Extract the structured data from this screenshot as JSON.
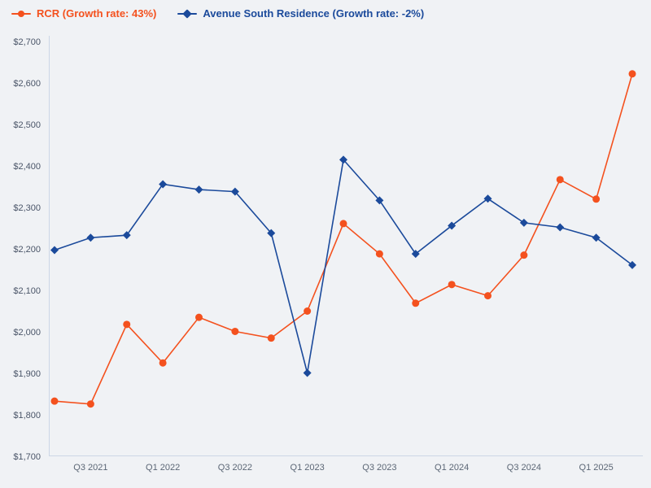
{
  "colors": {
    "background": "#f0f2f5",
    "axis_line": "#ccd6e6",
    "y_tick_label": "#4a5568",
    "x_tick_label": "#5b6675",
    "rcr_accent": "#f4511e",
    "avenue_south_accent": "#1b4a9b"
  },
  "chart_data": {
    "type": "line",
    "title": "",
    "xlabel": "",
    "ylabel": "",
    "grid": false,
    "legend_position": "top-left",
    "categories": [
      "Q2 2021",
      "Q3 2021",
      "Q4 2021",
      "Q1 2022",
      "Q2 2022",
      "Q3 2022",
      "Q4 2022",
      "Q1 2023",
      "Q2 2023",
      "Q3 2023",
      "Q4 2023",
      "Q1 2024",
      "Q2 2024",
      "Q3 2024",
      "Q4 2024",
      "Q1 2025",
      "Q2 2025"
    ],
    "x_tick_labels": [
      "Q3 2021",
      "Q1 2022",
      "Q3 2022",
      "Q1 2023",
      "Q3 2023",
      "Q1 2024",
      "Q3 2024",
      "Q1 2025"
    ],
    "ylim": [
      1700,
      2700
    ],
    "y_tick_step": 100,
    "y_tick_prefix": "$",
    "y_tick_labels": [
      "$1,700",
      "$1,800",
      "$1,900",
      "$2,000",
      "$2,100",
      "$2,200",
      "$2,300",
      "$2,400",
      "$2,500",
      "$2,600",
      "$2,700"
    ],
    "series": [
      {
        "id": "rcr",
        "name": "RCR (Growth rate: 43%)",
        "color": "#f4511e",
        "marker": "circle",
        "values": [
          1833,
          1826,
          2018,
          1925,
          2035,
          2001,
          1985,
          2050,
          2261,
          2188,
          2069,
          2114,
          2087,
          2185,
          2367,
          2320,
          2622
        ]
      },
      {
        "id": "avenue-south-residence",
        "name": "Avenue South Residence (Growth rate: -2%)",
        "color": "#1b4a9b",
        "marker": "diamond",
        "values": [
          2197,
          2227,
          2233,
          2356,
          2343,
          2338,
          2238,
          1901,
          2415,
          2317,
          2188,
          2256,
          2321,
          2263,
          2252,
          2227,
          2161
        ]
      }
    ]
  }
}
